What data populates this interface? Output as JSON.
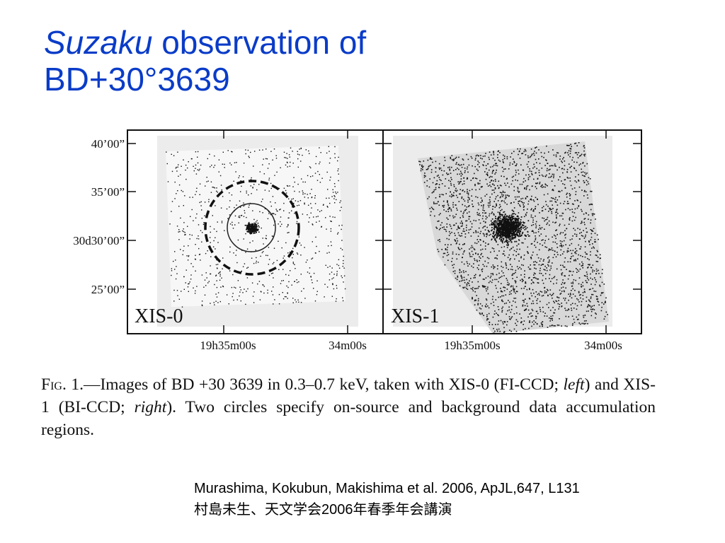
{
  "title": {
    "italic_part": "Suzaku",
    "rest_line1": " observation of",
    "line2": "BD+30°3639"
  },
  "figure": {
    "y_ticks": [
      "40’00”",
      "35’00”",
      "30d30’00”",
      "25’00”"
    ],
    "x_ticks_left": [
      "19h35m00s",
      "34m00s"
    ],
    "x_ticks_right": [
      "19h35m00s",
      "34m00s"
    ],
    "panel_left_label": "XIS-0",
    "panel_right_label": "XIS-1"
  },
  "caption": {
    "fig_label": "Fig.",
    "part1": " 1.—Images of BD +30 3639 in 0.3–0.7 keV, taken with XIS-0 (FI-CCD; ",
    "left_word": "left",
    "part2": ") and XIS-1 (BI-CCD; ",
    "right_word": "right",
    "part3": "). Two circles specify on-source and background data accumulation regions."
  },
  "reference": {
    "line1": "Murashima, Kokubun, Makishima et al. 2006, ApJL,647, L131",
    "line2": "村島未生、天文学会2006年春季年会講演"
  },
  "colors": {
    "title": "#0a3cc8"
  }
}
